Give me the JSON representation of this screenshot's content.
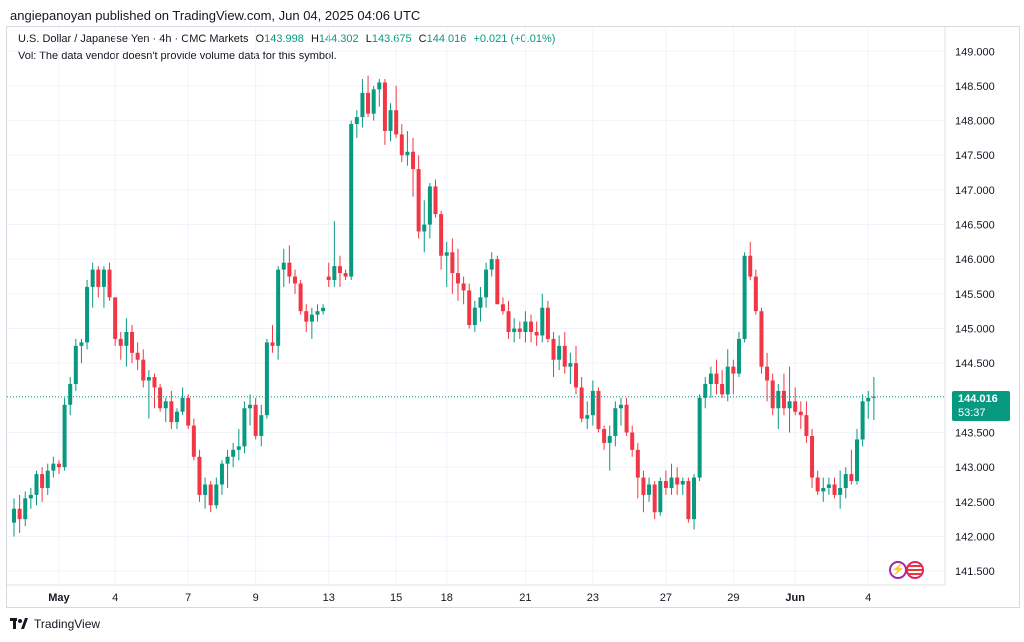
{
  "header": {
    "publisher_line": "angiepanoyan published on TradingView.com, Jun 04, 2025 04:06 UTC"
  },
  "legend": {
    "symbol_line": "U.S. Dollar / Japanese Yen · 4h · CMC Markets",
    "o_label": "O",
    "o_value": "143.998",
    "h_label": "H",
    "h_value": "144.302",
    "l_label": "L",
    "l_value": "143.675",
    "c_label": "C",
    "c_value": "144.016",
    "change": "+0.021 (+0.01%)",
    "vol_note": "Vol: The data vendor doesn't provide volume data for this symbol."
  },
  "price_tag": {
    "price": "144.016",
    "countdown": "53:37"
  },
  "footer": {
    "brand": "TradingView"
  },
  "colors": {
    "up": "#089981",
    "down": "#f23645",
    "grid": "#f0f3fa",
    "axis_text": "#131722",
    "last_price_line": "#089981"
  },
  "chart_data": {
    "type": "candlestick",
    "title": "U.S. Dollar / Japanese Yen · 4h · CMC Markets",
    "timeframe": "4h",
    "ylim": [
      141.3,
      149.35
    ],
    "y_ticks": [
      "149.000",
      "148.500",
      "148.000",
      "147.500",
      "147.000",
      "146.500",
      "146.000",
      "145.500",
      "145.000",
      "144.500",
      "144.000",
      "143.500",
      "143.000",
      "142.500",
      "142.000",
      "141.500"
    ],
    "x_ticks": [
      {
        "label": "May",
        "bold": true,
        "bar": 8
      },
      {
        "label": "4",
        "bold": false,
        "bar": 18
      },
      {
        "label": "7",
        "bold": false,
        "bar": 31
      },
      {
        "label": "9",
        "bold": false,
        "bar": 43
      },
      {
        "label": "13",
        "bold": false,
        "bar": 56
      },
      {
        "label": "15",
        "bold": false,
        "bar": 68
      },
      {
        "label": "18",
        "bold": false,
        "bar": 77
      },
      {
        "label": "21",
        "bold": false,
        "bar": 91
      },
      {
        "label": "23",
        "bold": false,
        "bar": 103
      },
      {
        "label": "27",
        "bold": false,
        "bar": 116
      },
      {
        "label": "29",
        "bold": false,
        "bar": 128
      },
      {
        "label": "Jun",
        "bold": true,
        "bar": 139
      },
      {
        "label": "4",
        "bold": false,
        "bar": 152
      }
    ],
    "last_price": 144.016,
    "candles": [
      [
        142.2,
        142.55,
        142.0,
        142.4
      ],
      [
        142.4,
        142.6,
        142.05,
        142.25
      ],
      [
        142.25,
        142.65,
        142.15,
        142.55
      ],
      [
        142.55,
        142.7,
        142.4,
        142.6
      ],
      [
        142.6,
        142.95,
        142.45,
        142.9
      ],
      [
        142.9,
        143.0,
        142.5,
        142.7
      ],
      [
        142.7,
        143.05,
        142.6,
        142.95
      ],
      [
        142.95,
        143.15,
        142.85,
        143.05
      ],
      [
        143.05,
        143.1,
        142.9,
        143.0
      ],
      [
        143.0,
        144.0,
        142.95,
        143.9
      ],
      [
        143.9,
        144.3,
        143.75,
        144.2
      ],
      [
        144.2,
        144.85,
        144.1,
        144.75
      ],
      [
        144.75,
        144.85,
        144.5,
        144.8
      ],
      [
        144.8,
        145.7,
        144.7,
        145.6
      ],
      [
        145.6,
        145.95,
        145.3,
        145.85
      ],
      [
        145.85,
        145.9,
        145.45,
        145.6
      ],
      [
        145.6,
        145.9,
        145.3,
        145.85
      ],
      [
        145.85,
        145.95,
        145.4,
        145.45
      ],
      [
        145.45,
        145.45,
        144.75,
        144.85
      ],
      [
        144.85,
        144.95,
        144.55,
        144.75
      ],
      [
        144.75,
        145.15,
        144.45,
        144.95
      ],
      [
        144.95,
        145.05,
        144.5,
        144.65
      ],
      [
        144.65,
        144.8,
        144.4,
        144.55
      ],
      [
        144.55,
        144.7,
        144.15,
        144.25
      ],
      [
        144.25,
        144.4,
        143.7,
        144.3
      ],
      [
        144.3,
        144.35,
        143.85,
        144.15
      ],
      [
        144.15,
        144.2,
        143.8,
        143.85
      ],
      [
        143.85,
        144.0,
        143.65,
        143.95
      ],
      [
        143.95,
        144.1,
        143.55,
        143.65
      ],
      [
        143.65,
        143.85,
        143.55,
        143.8
      ],
      [
        143.8,
        144.15,
        143.75,
        144.0
      ],
      [
        144.0,
        144.05,
        143.55,
        143.6
      ],
      [
        143.6,
        143.7,
        143.1,
        143.15
      ],
      [
        143.15,
        143.25,
        142.5,
        142.6
      ],
      [
        142.6,
        142.85,
        142.4,
        142.75
      ],
      [
        142.75,
        142.8,
        142.35,
        142.45
      ],
      [
        142.45,
        142.85,
        142.4,
        142.75
      ],
      [
        142.75,
        143.1,
        142.6,
        143.05
      ],
      [
        143.05,
        143.25,
        142.7,
        143.15
      ],
      [
        143.15,
        143.35,
        143.0,
        143.25
      ],
      [
        143.25,
        143.55,
        143.1,
        143.3
      ],
      [
        143.3,
        143.95,
        143.2,
        143.85
      ],
      [
        143.85,
        144.05,
        143.6,
        143.9
      ],
      [
        143.9,
        144.0,
        143.4,
        143.45
      ],
      [
        143.45,
        143.9,
        143.3,
        143.75
      ],
      [
        143.75,
        144.85,
        143.7,
        144.8
      ],
      [
        144.8,
        145.05,
        144.65,
        144.75
      ],
      [
        144.75,
        145.9,
        144.55,
        145.85
      ],
      [
        145.85,
        146.15,
        145.6,
        145.95
      ],
      [
        145.95,
        146.2,
        145.65,
        145.75
      ],
      [
        145.75,
        145.85,
        145.5,
        145.65
      ],
      [
        145.65,
        145.7,
        145.2,
        145.25
      ],
      [
        145.25,
        145.35,
        144.95,
        145.1
      ],
      [
        145.1,
        145.3,
        144.85,
        145.2
      ],
      [
        145.2,
        145.35,
        145.1,
        145.25
      ],
      [
        145.25,
        145.35,
        145.2,
        145.3
      ],
      [
        145.75,
        145.95,
        145.6,
        145.7
      ],
      [
        145.7,
        146.55,
        145.6,
        145.9
      ],
      [
        145.9,
        146.05,
        145.6,
        145.8
      ],
      [
        145.8,
        145.85,
        145.7,
        145.75
      ],
      [
        145.75,
        148.0,
        145.7,
        147.95
      ],
      [
        147.95,
        148.15,
        147.75,
        148.05
      ],
      [
        148.05,
        148.6,
        147.9,
        148.4
      ],
      [
        148.4,
        148.65,
        148.05,
        148.1
      ],
      [
        148.1,
        148.5,
        148.0,
        148.45
      ],
      [
        148.45,
        148.6,
        148.2,
        148.55
      ],
      [
        148.55,
        148.6,
        147.65,
        147.85
      ],
      [
        147.85,
        148.25,
        147.7,
        148.15
      ],
      [
        148.15,
        148.5,
        147.75,
        147.8
      ],
      [
        147.8,
        147.95,
        147.4,
        147.5
      ],
      [
        147.5,
        147.85,
        147.35,
        147.55
      ],
      [
        147.55,
        147.75,
        146.9,
        147.3
      ],
      [
        147.3,
        147.5,
        146.3,
        146.4
      ],
      [
        146.4,
        146.85,
        146.1,
        146.5
      ],
      [
        146.5,
        147.1,
        146.3,
        147.05
      ],
      [
        147.05,
        147.15,
        146.6,
        146.65
      ],
      [
        146.65,
        146.7,
        145.85,
        146.05
      ],
      [
        146.05,
        146.25,
        145.6,
        146.1
      ],
      [
        146.1,
        146.3,
        145.5,
        145.8
      ],
      [
        145.8,
        146.15,
        145.4,
        145.65
      ],
      [
        145.65,
        145.75,
        145.35,
        145.55
      ],
      [
        145.55,
        145.65,
        145.0,
        145.05
      ],
      [
        145.05,
        145.4,
        144.95,
        145.3
      ],
      [
        145.3,
        145.6,
        145.1,
        145.45
      ],
      [
        145.45,
        145.95,
        145.3,
        145.85
      ],
      [
        145.85,
        146.1,
        145.75,
        146.0
      ],
      [
        146.0,
        146.05,
        145.4,
        145.35
      ],
      [
        145.35,
        145.45,
        145.2,
        145.25
      ],
      [
        145.25,
        145.4,
        144.85,
        144.95
      ],
      [
        144.95,
        145.15,
        144.8,
        145.0
      ],
      [
        145.0,
        145.1,
        144.85,
        144.95
      ],
      [
        144.95,
        145.25,
        144.8,
        145.1
      ],
      [
        145.1,
        145.2,
        144.8,
        144.95
      ],
      [
        144.95,
        145.1,
        144.75,
        144.9
      ],
      [
        144.9,
        145.5,
        144.8,
        145.3
      ],
      [
        145.3,
        145.4,
        144.8,
        144.85
      ],
      [
        144.85,
        144.95,
        144.3,
        144.55
      ],
      [
        144.55,
        144.9,
        144.4,
        144.75
      ],
      [
        144.75,
        144.95,
        144.35,
        144.45
      ],
      [
        144.45,
        144.65,
        144.2,
        144.5
      ],
      [
        144.5,
        144.75,
        144.05,
        144.15
      ],
      [
        144.15,
        144.3,
        143.65,
        143.7
      ],
      [
        143.7,
        143.95,
        143.55,
        143.75
      ],
      [
        143.75,
        144.25,
        143.6,
        144.1
      ],
      [
        144.1,
        144.15,
        143.5,
        143.55
      ],
      [
        143.55,
        143.6,
        143.25,
        143.35
      ],
      [
        143.35,
        143.6,
        142.95,
        143.45
      ],
      [
        143.45,
        143.95,
        143.3,
        143.85
      ],
      [
        143.85,
        144.0,
        143.6,
        143.9
      ],
      [
        143.9,
        144.0,
        143.45,
        143.5
      ],
      [
        143.5,
        143.6,
        143.15,
        143.25
      ],
      [
        143.25,
        143.35,
        142.55,
        142.85
      ],
      [
        142.85,
        142.95,
        142.35,
        142.6
      ],
      [
        142.6,
        142.85,
        142.5,
        142.75
      ],
      [
        142.75,
        142.8,
        142.25,
        142.35
      ],
      [
        142.35,
        142.85,
        142.3,
        142.8
      ],
      [
        142.8,
        142.95,
        142.6,
        142.7
      ],
      [
        142.7,
        143.05,
        142.6,
        142.85
      ],
      [
        142.85,
        143.0,
        142.6,
        142.75
      ],
      [
        142.75,
        142.85,
        142.6,
        142.8
      ],
      [
        142.8,
        142.85,
        142.2,
        142.25
      ],
      [
        142.25,
        142.9,
        142.1,
        142.85
      ],
      [
        142.85,
        144.05,
        142.8,
        144.0
      ],
      [
        144.0,
        144.3,
        143.85,
        144.2
      ],
      [
        144.2,
        144.45,
        144.0,
        144.35
      ],
      [
        144.35,
        144.55,
        144.05,
        144.2
      ],
      [
        144.2,
        144.4,
        144.0,
        144.05
      ],
      [
        144.05,
        144.7,
        143.95,
        144.45
      ],
      [
        144.45,
        144.55,
        144.05,
        144.35
      ],
      [
        144.35,
        144.95,
        144.3,
        144.85
      ],
      [
        144.85,
        146.1,
        144.8,
        146.05
      ],
      [
        146.05,
        146.25,
        145.7,
        145.75
      ],
      [
        145.75,
        145.85,
        145.2,
        145.25
      ],
      [
        145.25,
        145.3,
        144.35,
        144.45
      ],
      [
        144.45,
        144.65,
        143.95,
        144.25
      ],
      [
        144.25,
        144.35,
        143.75,
        143.85
      ],
      [
        143.85,
        144.2,
        143.55,
        144.1
      ],
      [
        144.1,
        144.35,
        143.75,
        143.85
      ],
      [
        143.85,
        144.45,
        143.5,
        143.95
      ],
      [
        143.95,
        144.15,
        143.75,
        143.8
      ],
      [
        143.8,
        143.95,
        143.55,
        143.75
      ],
      [
        143.75,
        143.95,
        143.35,
        143.45
      ],
      [
        143.45,
        143.55,
        142.7,
        142.85
      ],
      [
        142.85,
        142.95,
        142.6,
        142.65
      ],
      [
        142.65,
        142.85,
        142.5,
        142.7
      ],
      [
        142.7,
        142.85,
        142.6,
        142.75
      ],
      [
        142.75,
        142.85,
        142.55,
        142.6
      ],
      [
        142.6,
        142.95,
        142.4,
        142.7
      ],
      [
        142.7,
        143.0,
        142.55,
        142.9
      ],
      [
        142.9,
        143.25,
        142.75,
        142.8
      ],
      [
        142.8,
        143.55,
        142.75,
        143.4
      ],
      [
        143.4,
        144.05,
        143.3,
        143.95
      ],
      [
        143.95,
        144.1,
        143.7,
        144.0
      ],
      [
        144.0,
        144.3,
        143.68,
        144.016
      ]
    ]
  }
}
